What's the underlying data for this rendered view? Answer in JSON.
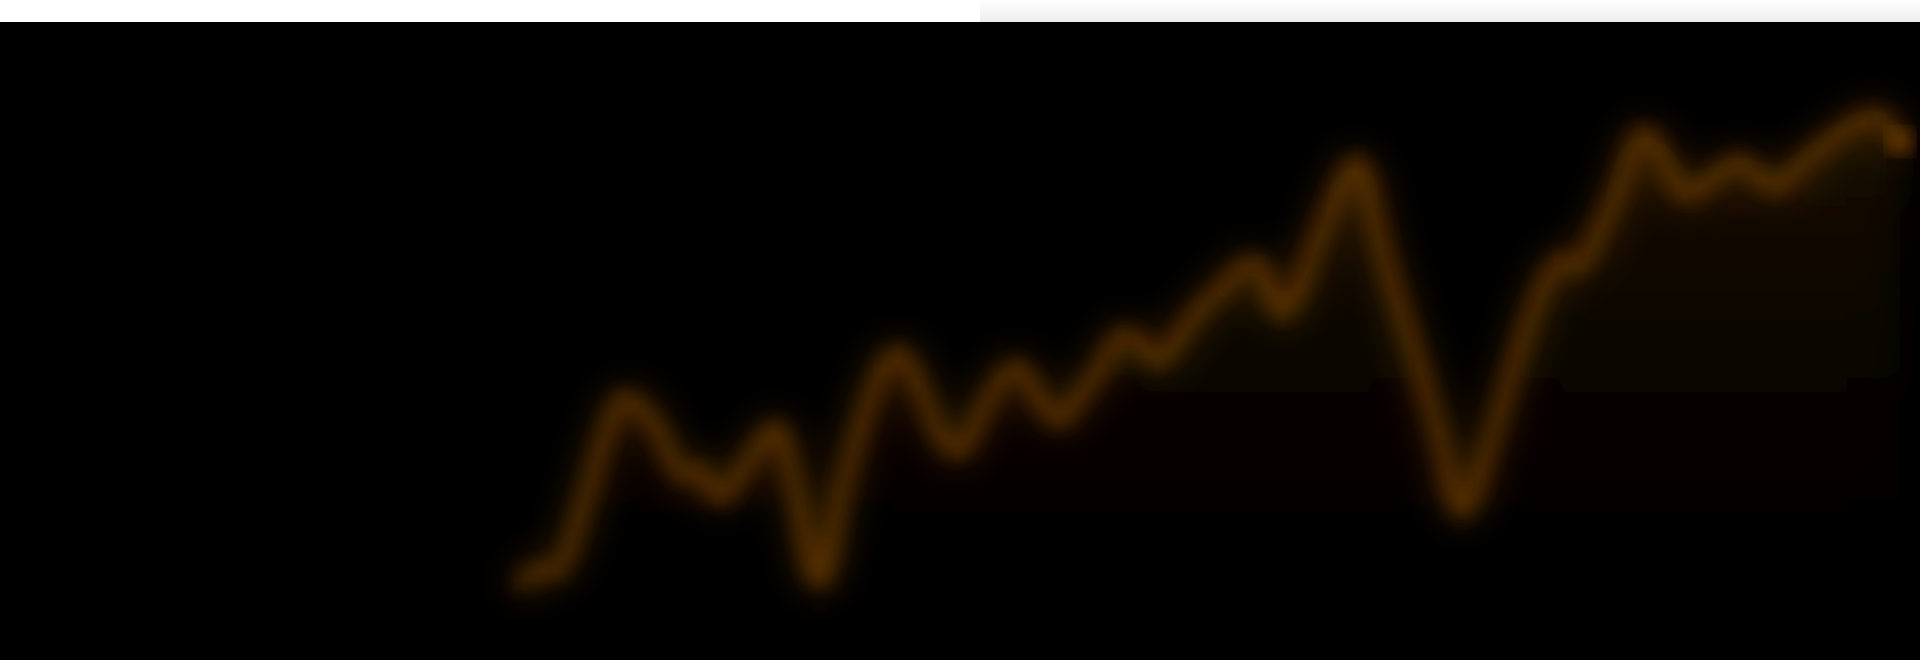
{
  "page": {
    "theme": {
      "background": "#000000",
      "top_bar": "#ffffff",
      "accent": "#8a4c00",
      "accent_glow": "#b86a00",
      "fill_dark": "#1a0d00"
    }
  },
  "hero": {
    "graphic": "blurred-stock-line-graphic",
    "chart_data": {
      "type": "line",
      "series": [
        {
          "values": [
            18,
            22,
            20,
            35,
            52,
            66,
            63,
            57,
            44,
            48,
            38,
            46,
            53,
            60,
            36,
            12,
            41,
            58,
            72,
            78,
            68,
            55,
            50,
            61,
            70,
            74,
            64,
            58,
            66,
            72,
            82,
            79,
            73,
            81,
            88,
            92,
            98,
            100,
            84,
            93,
            107,
            118,
            128,
            104,
            88,
            72,
            56,
            32,
            46,
            62,
            78,
            92,
            101,
            97,
            108,
            118,
            134,
            128,
            116,
            118,
            122,
            126,
            120,
            118,
            124,
            128,
            132,
            135,
            137,
            130
          ]
        }
      ]
    }
  }
}
